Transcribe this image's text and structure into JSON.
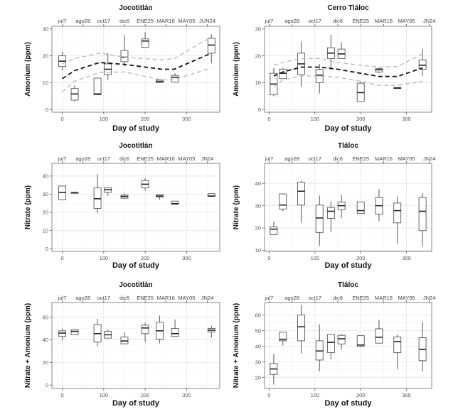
{
  "chart_data": [
    {
      "type": "boxplot",
      "title": "Jocotitlán",
      "xlabel": "Day of study",
      "ylabel": "Amonium (ppm)",
      "xlim": [
        -25,
        380
      ],
      "ylim": [
        -1,
        31
      ],
      "xticks": [
        0,
        100,
        200,
        300
      ],
      "yticks": [
        0,
        10,
        20,
        30
      ],
      "top_labels": [
        {
          "x": 0,
          "label": "jul7"
        },
        {
          "x": 50,
          "label": "ago28"
        },
        {
          "x": 100,
          "label": "oct17"
        },
        {
          "x": 150,
          "label": "dic6"
        },
        {
          "x": 200,
          "label": "ENE25"
        },
        {
          "x": 250,
          "label": "MAR16"
        },
        {
          "x": 300,
          "label": "MAY05"
        },
        {
          "x": 350,
          "label": "JUN24"
        }
      ],
      "grid": true,
      "boxes": [
        {
          "x": 0,
          "min": 14.5,
          "q1": 16,
          "median": 18,
          "q3": 20,
          "max": 21.5
        },
        {
          "x": 30,
          "min": 3,
          "q1": 3.5,
          "median": 5.8,
          "q3": 7.8,
          "max": 9
        },
        {
          "x": 85,
          "min": 5.5,
          "q1": 5.5,
          "median": 5.8,
          "q3": 11.7,
          "max": 11.7
        },
        {
          "x": 110,
          "min": 11,
          "q1": 13,
          "median": 15,
          "q3": 17,
          "max": 21
        },
        {
          "x": 150,
          "min": 16,
          "q1": 17.8,
          "median": 19.5,
          "q3": 22,
          "max": 27.8
        },
        {
          "x": 200,
          "min": 23.2,
          "q1": 23.2,
          "median": 25.5,
          "q3": 26.3,
          "max": 28.8
        },
        {
          "x": 235,
          "min": 9.8,
          "q1": 10,
          "median": 10.5,
          "q3": 11,
          "max": 11
        },
        {
          "x": 272,
          "min": 10.2,
          "q1": 10.2,
          "median": 12,
          "q3": 12.7,
          "max": 13.5
        },
        {
          "x": 360,
          "min": 17.2,
          "q1": 21,
          "median": 24,
          "q3": 26.5,
          "max": 28
        }
      ],
      "trend": {
        "x": [
          0,
          30,
          90,
          150,
          240,
          270,
          360
        ],
        "fit": [
          11.5,
          14.5,
          17.5,
          16.8,
          15,
          15,
          21
        ],
        "upper": [
          17,
          19,
          21,
          19.5,
          18.5,
          19,
          27
        ],
        "lower": [
          6.5,
          10.5,
          13.8,
          14,
          11,
          11.2,
          15.5
        ]
      }
    },
    {
      "type": "boxplot",
      "title": "Cerro Tláloc",
      "xlabel": "Day of study",
      "ylabel": "Amonium (ppm)",
      "xlim": [
        -10,
        355
      ],
      "ylim": [
        -1,
        31
      ],
      "xticks": [
        0,
        100,
        200,
        300
      ],
      "yticks": [
        0,
        10,
        20,
        30
      ],
      "top_labels": [
        {
          "x": 0,
          "label": "jul7"
        },
        {
          "x": 50,
          "label": "ago28"
        },
        {
          "x": 100,
          "label": "oct17"
        },
        {
          "x": 150,
          "label": "dic6"
        },
        {
          "x": 200,
          "label": "ENE25"
        },
        {
          "x": 250,
          "label": "MAR16"
        },
        {
          "x": 300,
          "label": "MAY05"
        },
        {
          "x": 350,
          "label": "JN24"
        }
      ],
      "grid": true,
      "boxes": [
        {
          "x": 10,
          "min": 5,
          "q1": 5.5,
          "median": 9.5,
          "q3": 13.5,
          "max": 15.5
        },
        {
          "x": 30,
          "min": 11.5,
          "q1": 11.5,
          "median": 13.5,
          "q3": 15,
          "max": 15.5
        },
        {
          "x": 70,
          "min": 8.5,
          "q1": 13,
          "median": 17,
          "q3": 21,
          "max": 25.2
        },
        {
          "x": 110,
          "min": 6,
          "q1": 10,
          "median": 12.8,
          "q3": 15,
          "max": 17
        },
        {
          "x": 135,
          "min": 15,
          "q1": 19,
          "median": 21,
          "q3": 23,
          "max": 27.8
        },
        {
          "x": 158,
          "min": 19,
          "q1": 19,
          "median": 20.7,
          "q3": 22.5,
          "max": 25
        },
        {
          "x": 200,
          "min": 3,
          "q1": 3,
          "median": 6.3,
          "q3": 9.8,
          "max": 10.5
        },
        {
          "x": 240,
          "min": 13.5,
          "q1": 14,
          "median": 14.8,
          "q3": 15.2,
          "max": 15.5
        },
        {
          "x": 280,
          "min": 7.8,
          "q1": 7.8,
          "median": 8,
          "q3": 8.2,
          "max": 8.2
        },
        {
          "x": 335,
          "min": 12.5,
          "q1": 15,
          "median": 16.5,
          "q3": 18.5,
          "max": 22.5
        }
      ],
      "trend": {
        "x": [
          10,
          30,
          70,
          110,
          150,
          200,
          240,
          280,
          335
        ],
        "fit": [
          12.5,
          14,
          15.8,
          15.8,
          15,
          13.5,
          12.3,
          12.3,
          15.5
        ],
        "upper": [
          16.5,
          17.5,
          19,
          19,
          17.5,
          16.5,
          15.8,
          16,
          20.7
        ],
        "lower": [
          8.5,
          11,
          12.5,
          12.5,
          12,
          10.5,
          9,
          9,
          10.5
        ]
      }
    },
    {
      "type": "boxplot",
      "title": "Jocotitlán",
      "xlabel": "Day of study",
      "ylabel": "Nitrate (ppm)",
      "xlim": [
        -25,
        380
      ],
      "ylim": [
        -1.5,
        47
      ],
      "xticks": [
        0,
        100,
        200,
        300
      ],
      "yticks": [
        0,
        10,
        20,
        30,
        40
      ],
      "top_labels": [
        {
          "x": 0,
          "label": "jul7"
        },
        {
          "x": 50,
          "label": "ago28"
        },
        {
          "x": 100,
          "label": "oct17"
        },
        {
          "x": 150,
          "label": "dic6"
        },
        {
          "x": 200,
          "label": "ENE25"
        },
        {
          "x": 250,
          "label": "MAR16"
        },
        {
          "x": 300,
          "label": "MAY05"
        },
        {
          "x": 350,
          "label": "JN24"
        }
      ],
      "grid": true,
      "boxes": [
        {
          "x": 0,
          "min": 27,
          "q1": 27,
          "median": 31,
          "q3": 34.5,
          "max": 34.5
        },
        {
          "x": 30,
          "min": 30.5,
          "q1": 30.5,
          "median": 30.8,
          "q3": 31,
          "max": 31.5
        },
        {
          "x": 85,
          "min": 19.5,
          "q1": 22.2,
          "median": 27.5,
          "q3": 33.5,
          "max": 41
        },
        {
          "x": 110,
          "min": 29,
          "q1": 31,
          "median": 32.5,
          "q3": 33.5,
          "max": 33.5
        },
        {
          "x": 150,
          "min": 27.5,
          "q1": 27.8,
          "median": 28.8,
          "q3": 29.5,
          "max": 30.5
        },
        {
          "x": 200,
          "min": 32,
          "q1": 33.5,
          "median": 35.5,
          "q3": 37.5,
          "max": 38.8
        },
        {
          "x": 235,
          "min": 27,
          "q1": 28.5,
          "median": 29,
          "q3": 29.8,
          "max": 29.8
        },
        {
          "x": 272,
          "min": 24.5,
          "q1": 24.5,
          "median": 24.8,
          "q3": 26.2,
          "max": 26.2
        },
        {
          "x": 360,
          "min": 28.8,
          "q1": 28.8,
          "median": 29,
          "q3": 30.3,
          "max": 30.3
        }
      ]
    },
    {
      "type": "boxplot",
      "title": "Tláloc",
      "xlabel": "Day of study",
      "ylabel": "Nitrate (ppm)",
      "xlim": [
        -10,
        355
      ],
      "ylim": [
        9.5,
        49
      ],
      "xticks": [
        0,
        100,
        200,
        300
      ],
      "yticks": [
        10,
        20,
        30,
        40
      ],
      "top_labels": [
        {
          "x": 0,
          "label": "jul7"
        },
        {
          "x": 50,
          "label": "ago28"
        },
        {
          "x": 100,
          "label": "oct17"
        },
        {
          "x": 150,
          "label": "dic6"
        },
        {
          "x": 200,
          "label": "ENE25"
        },
        {
          "x": 250,
          "label": "MAR16"
        },
        {
          "x": 300,
          "label": "MAY05"
        },
        {
          "x": 350,
          "label": "JN24"
        }
      ],
      "grid": true,
      "boxes": [
        {
          "x": 10,
          "min": 17,
          "q1": 17,
          "median": 19.5,
          "q3": 20.5,
          "max": 22.8
        },
        {
          "x": 30,
          "min": 27.5,
          "q1": 28.5,
          "median": 30.3,
          "q3": 35.3,
          "max": 35.3
        },
        {
          "x": 70,
          "min": 22.5,
          "q1": 30.3,
          "median": 36.5,
          "q3": 40.5,
          "max": 41.2
        },
        {
          "x": 110,
          "min": 12,
          "q1": 18,
          "median": 24.5,
          "q3": 30.3,
          "max": 34.5
        },
        {
          "x": 135,
          "min": 18.3,
          "q1": 24.3,
          "median": 27.5,
          "q3": 29.2,
          "max": 32
        },
        {
          "x": 158,
          "min": 24.5,
          "q1": 28.2,
          "median": 30,
          "q3": 31.7,
          "max": 34.8
        },
        {
          "x": 200,
          "min": 26.3,
          "q1": 26.5,
          "median": 27.8,
          "q3": 31.7,
          "max": 31.7
        },
        {
          "x": 240,
          "min": 23,
          "q1": 26.2,
          "median": 30,
          "q3": 33.7,
          "max": 37.5
        },
        {
          "x": 280,
          "min": 13,
          "q1": 22.3,
          "median": 27.8,
          "q3": 31.2,
          "max": 34.2
        },
        {
          "x": 335,
          "min": 11.8,
          "q1": 18.8,
          "median": 27.5,
          "q3": 33.7,
          "max": 35.7
        }
      ]
    },
    {
      "type": "boxplot",
      "title": "Jocotitlán",
      "xlabel": "Day of study",
      "ylabel": "Nitrate + Amonium (ppm)",
      "xlim": [
        -25,
        380
      ],
      "ylim": [
        -3,
        73
      ],
      "xticks": [
        0,
        100,
        200,
        300
      ],
      "yticks": [
        0,
        20,
        40,
        60
      ],
      "top_labels": [
        {
          "x": 0,
          "label": "jul7"
        },
        {
          "x": 50,
          "label": "ago28"
        },
        {
          "x": 100,
          "label": "oct17"
        },
        {
          "x": 150,
          "label": "dic6"
        },
        {
          "x": 200,
          "label": "ENE25"
        },
        {
          "x": 250,
          "label": "MAR16"
        },
        {
          "x": 300,
          "label": "MAY05"
        },
        {
          "x": 350,
          "label": "JN24"
        }
      ],
      "grid": true,
      "boxes": [
        {
          "x": 0,
          "min": 40,
          "q1": 43,
          "median": 46,
          "q3": 48,
          "max": 50
        },
        {
          "x": 30,
          "min": 44.5,
          "q1": 44.5,
          "median": 47.5,
          "q3": 49,
          "max": 49
        },
        {
          "x": 85,
          "min": 34,
          "q1": 38,
          "median": 45.5,
          "q3": 53.5,
          "max": 58.5
        },
        {
          "x": 110,
          "min": 41.5,
          "q1": 41.5,
          "median": 44.5,
          "q3": 47.5,
          "max": 49
        },
        {
          "x": 150,
          "min": 36.5,
          "q1": 36.5,
          "median": 39,
          "q3": 42.5,
          "max": 47
        },
        {
          "x": 200,
          "min": 38,
          "q1": 45.5,
          "median": 50.5,
          "q3": 53,
          "max": 55
        },
        {
          "x": 235,
          "min": 37,
          "q1": 40.5,
          "median": 48,
          "q3": 55.5,
          "max": 61.5
        },
        {
          "x": 272,
          "min": 43,
          "q1": 43,
          "median": 45.5,
          "q3": 50,
          "max": 58
        },
        {
          "x": 360,
          "min": 42,
          "q1": 47,
          "median": 48.5,
          "q3": 50,
          "max": 52.5
        }
      ]
    },
    {
      "type": "boxplot",
      "title": "Tláloc",
      "xlabel": "Day of study",
      "ylabel": "Nitrate + Amonium (ppm)",
      "xlim": [
        -10,
        355
      ],
      "ylim": [
        13,
        68
      ],
      "xticks": [
        0,
        100,
        200,
        300
      ],
      "yticks": [
        20,
        30,
        40,
        50,
        60
      ],
      "top_labels": [
        {
          "x": 0,
          "label": "jul7"
        },
        {
          "x": 50,
          "label": "ago28"
        },
        {
          "x": 100,
          "label": "oct17"
        },
        {
          "x": 150,
          "label": "dic6"
        },
        {
          "x": 200,
          "label": "ENE25"
        },
        {
          "x": 250,
          "label": "MAR16"
        },
        {
          "x": 300,
          "label": "MAY05"
        },
        {
          "x": 350,
          "label": "JN24"
        }
      ],
      "grid": true,
      "boxes": [
        {
          "x": 10,
          "min": 15.5,
          "q1": 22,
          "median": 25.5,
          "q3": 29,
          "max": 35
        },
        {
          "x": 30,
          "min": 40.5,
          "q1": 43.5,
          "median": 44.5,
          "q3": 49,
          "max": 49
        },
        {
          "x": 70,
          "min": 35.5,
          "q1": 43.5,
          "median": 52.5,
          "q3": 60,
          "max": 66.5
        },
        {
          "x": 110,
          "min": 24,
          "q1": 31.2,
          "median": 37,
          "q3": 43.5,
          "max": 54
        },
        {
          "x": 135,
          "min": 31.5,
          "q1": 36,
          "median": 42.5,
          "q3": 47.5,
          "max": 47.5
        },
        {
          "x": 158,
          "min": 38,
          "q1": 41.5,
          "median": 44.8,
          "q3": 47,
          "max": 48
        },
        {
          "x": 200,
          "min": 39.3,
          "q1": 40,
          "median": 40.8,
          "q3": 46.8,
          "max": 46.8
        },
        {
          "x": 240,
          "min": 41.8,
          "q1": 42,
          "median": 45.8,
          "q3": 51.2,
          "max": 57
        },
        {
          "x": 280,
          "min": 25.5,
          "q1": 36,
          "median": 43,
          "q3": 46,
          "max": 47.5
        },
        {
          "x": 335,
          "min": 24,
          "q1": 30.8,
          "median": 38,
          "q3": 45.5,
          "max": 55.5
        }
      ]
    }
  ]
}
